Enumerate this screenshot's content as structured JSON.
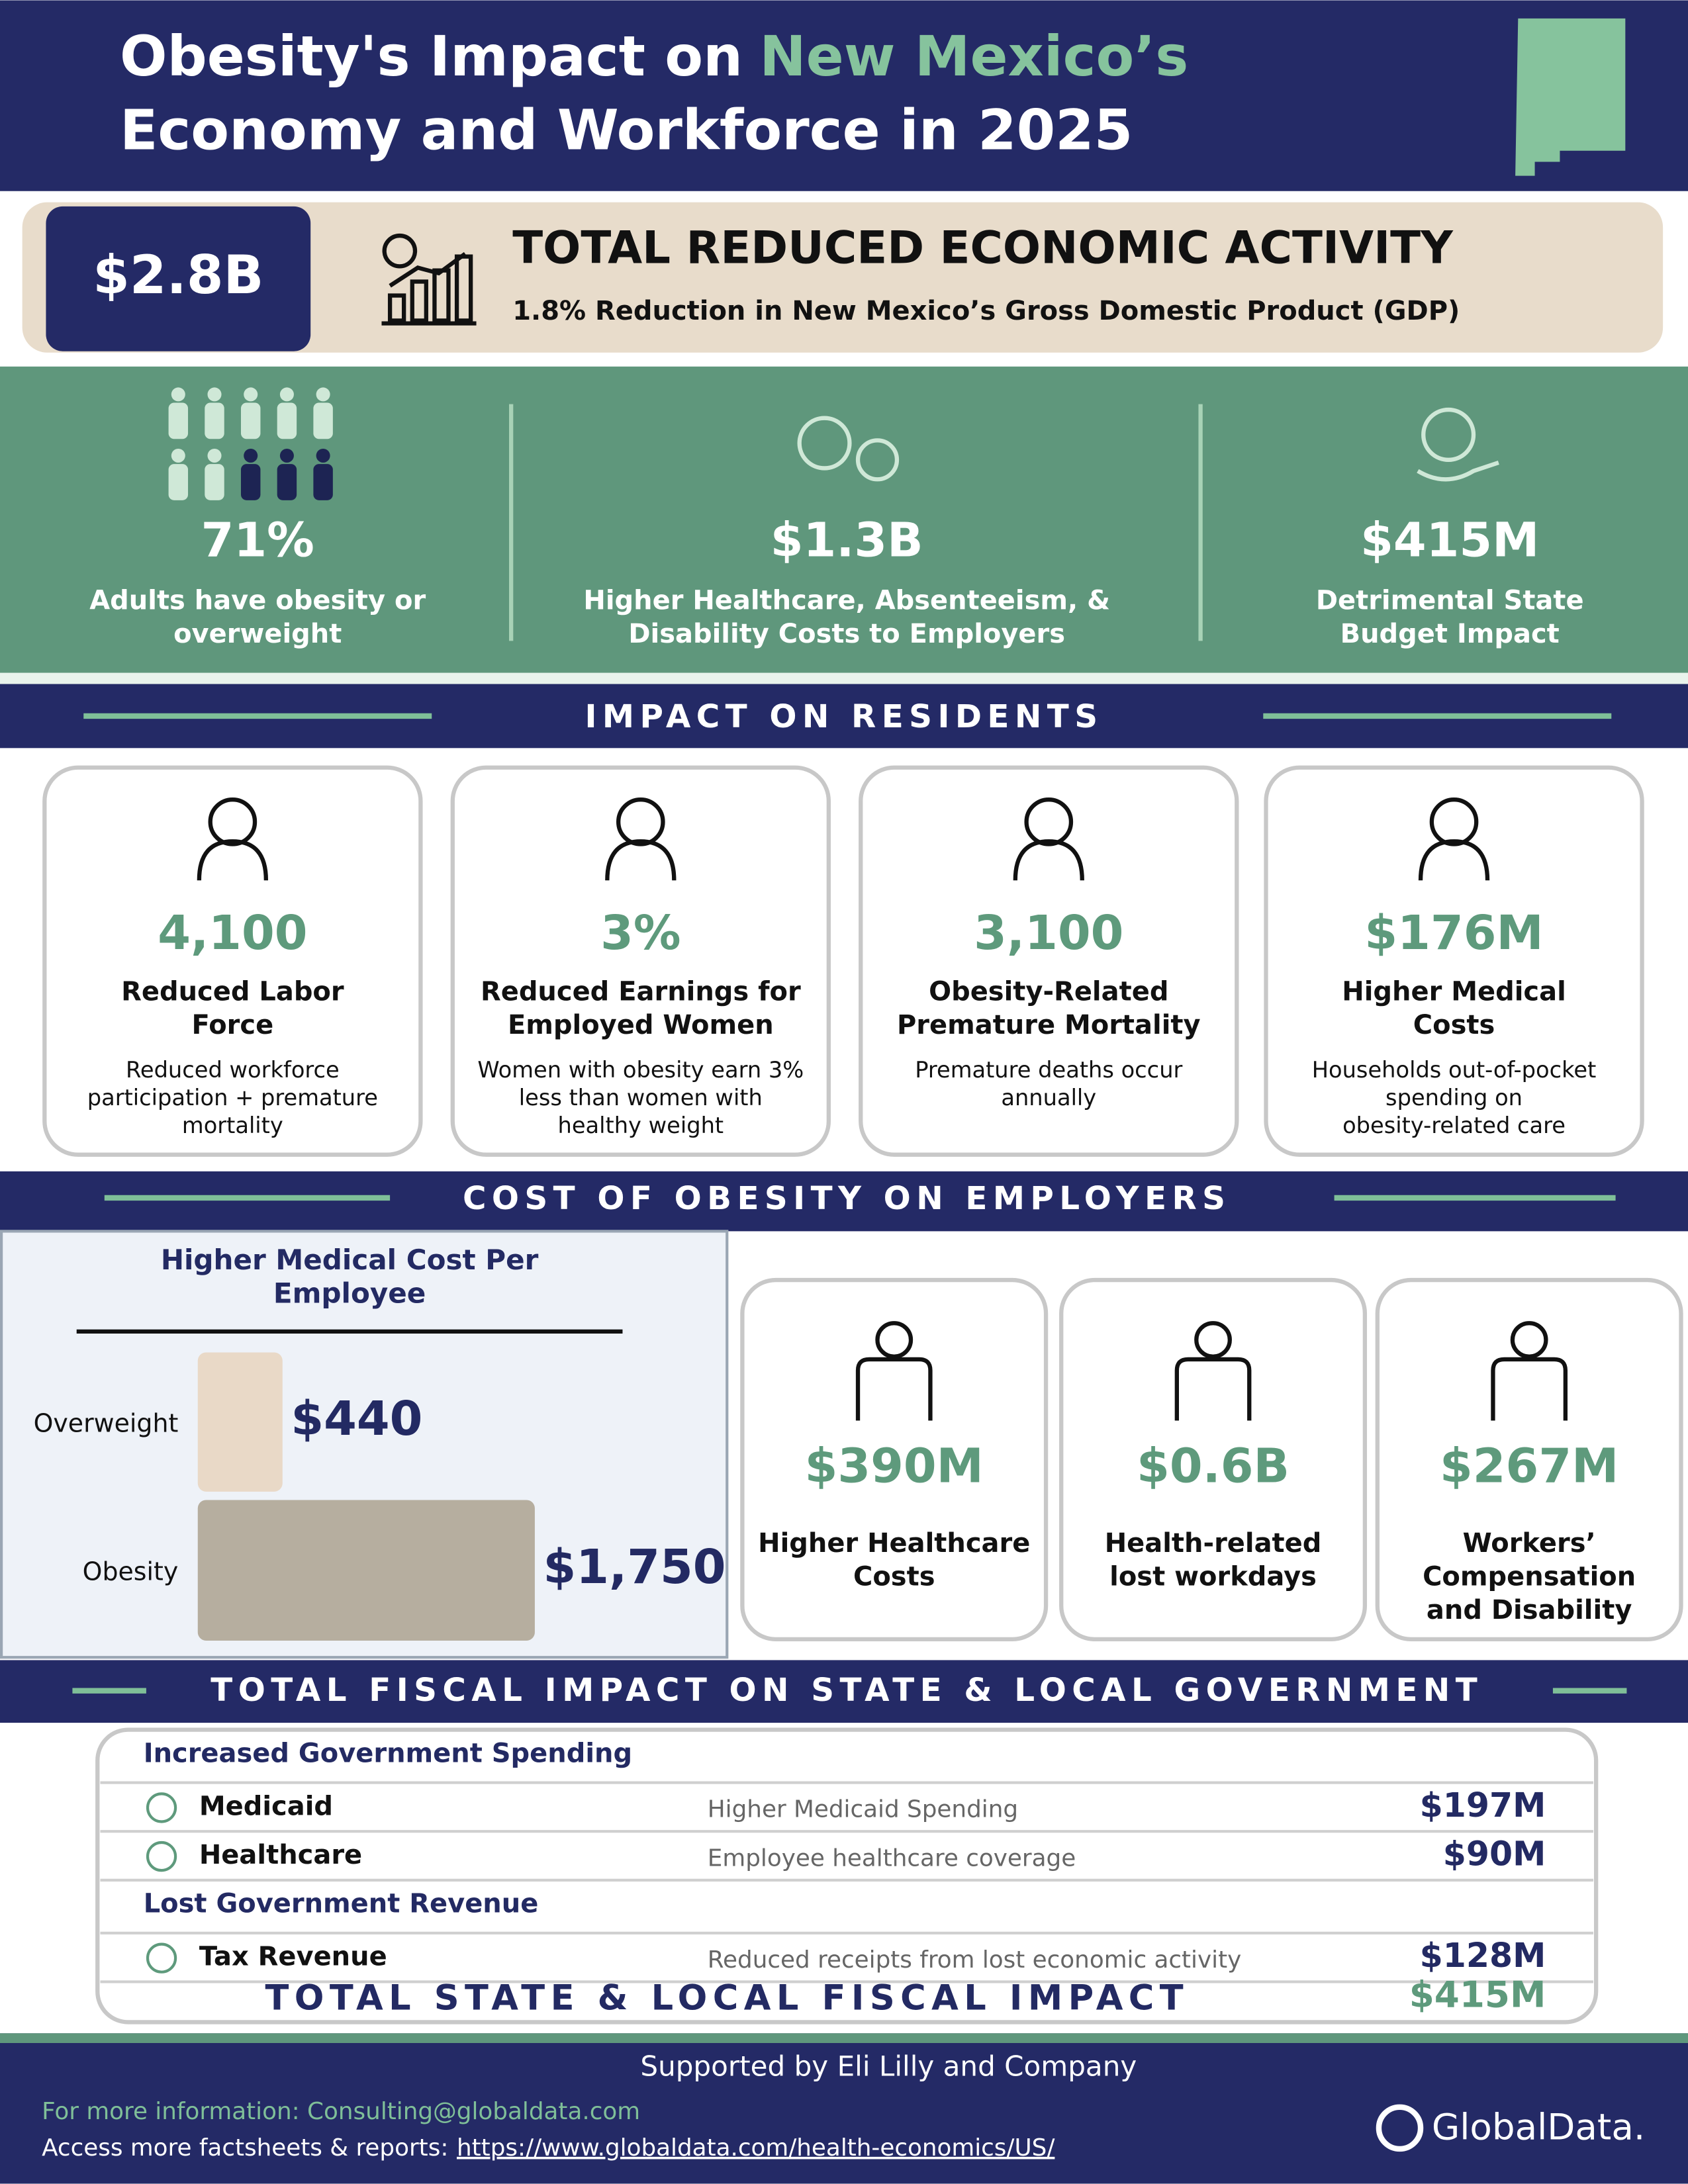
{
  "header": {
    "title_part1": "Obesity's Impact on",
    "title_highlight": "New Mexico’s",
    "title_line2": "Economy and Workforce in 2025"
  },
  "hero": {
    "value": "$2.8B",
    "title": "TOTAL REDUCED ECONOMIC ACTIVITY",
    "subtitle": "1.8% Reduction in New Mexico’s Gross Domestic Product (GDP)"
  },
  "highlights": [
    {
      "value": "71%",
      "label": [
        "Adults have obesity or",
        "overweight"
      ]
    },
    {
      "value": "$1.3B",
      "label": [
        "Higher Healthcare, Absenteeism, &",
        "Disability Costs to Employers"
      ]
    },
    {
      "value": "$415M",
      "label": [
        "Detrimental State",
        "Budget Impact"
      ]
    }
  ],
  "residents": {
    "heading": "IMPACT ON RESIDENTS",
    "cards": [
      {
        "value": "4,100",
        "title": [
          "Reduced Labor",
          "Force"
        ],
        "description": [
          "Reduced workforce",
          "participation + premature",
          "mortality"
        ]
      },
      {
        "value": "3%",
        "title": [
          "Reduced Earnings for",
          "Employed Women"
        ],
        "description": [
          "Women with obesity earn 3%",
          "less than women with",
          "healthy weight"
        ]
      },
      {
        "value": "3,100",
        "title": [
          "Obesity-Related",
          "Premature Mortality"
        ],
        "description": [
          "Premature deaths occur",
          "annually"
        ]
      },
      {
        "value": "$176M",
        "title": [
          "Higher Medical",
          "Costs"
        ],
        "description": [
          "Households out-of-pocket",
          "spending on",
          "obesity-related care"
        ]
      }
    ]
  },
  "employers": {
    "heading": "COST OF OBESITY ON EMPLOYERS",
    "chart": {
      "title": [
        "Higher Medical Cost Per",
        "Employee"
      ],
      "categories": [
        "Overweight",
        "Obesity"
      ],
      "values": [
        440,
        1750
      ],
      "value_labels": [
        "$440",
        "$1,750"
      ],
      "colors": [
        "#e9d9c7",
        "#b6ae9f"
      ]
    },
    "cards": [
      {
        "value": "$390M",
        "title": [
          "Higher Healthcare",
          "Costs"
        ]
      },
      {
        "value": "$0.6B",
        "title": [
          "Health-related",
          "lost workdays"
        ]
      },
      {
        "value": "$267M",
        "title": [
          "Workers’",
          "Compensation",
          "and Disability"
        ]
      }
    ]
  },
  "fiscal": {
    "heading": "TOTAL FISCAL IMPACT ON STATE & LOCAL GOVERNMENT",
    "groups": [
      {
        "title": "Increased Government Spending",
        "rows": [
          {
            "name": "Medicaid",
            "description": "Higher Medicaid Spending",
            "value": "$197M"
          },
          {
            "name": "Healthcare",
            "description": "Employee healthcare coverage",
            "value": "$90M"
          }
        ]
      },
      {
        "title": "Lost Government Revenue",
        "rows": [
          {
            "name": "Tax Revenue",
            "description": "Reduced receipts from lost economic activity",
            "value": "$128M"
          }
        ]
      }
    ],
    "total_label": "TOTAL STATE & LOCAL FISCAL IMPACT",
    "total_value": "$415M"
  },
  "footer": {
    "supported_by": "Supported by Eli Lilly and Company",
    "contact": "For more information: Consulting@globaldata.com",
    "access_label": "Access more factsheets & reports:",
    "url": "https://www.globaldata.com/health-economics/US/",
    "brand": "GlobalData."
  }
}
